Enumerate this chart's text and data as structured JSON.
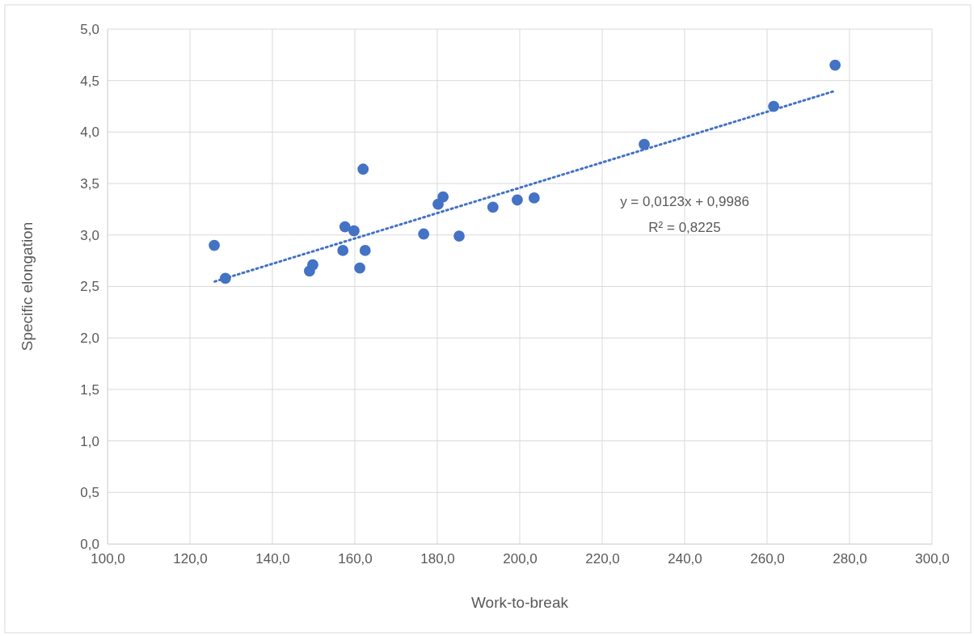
{
  "chart_data": {
    "type": "scatter",
    "xlabel": "Work-to-break",
    "ylabel": "Specific elongation",
    "xlim": [
      100,
      300
    ],
    "xticks": [
      {
        "value": 100,
        "label": "100,0"
      },
      {
        "value": 120,
        "label": "120,0"
      },
      {
        "value": 140,
        "label": "140,0"
      },
      {
        "value": 160,
        "label": "160,0"
      },
      {
        "value": 180,
        "label": "180,0"
      },
      {
        "value": 200,
        "label": "200,0"
      },
      {
        "value": 220,
        "label": "220,0"
      },
      {
        "value": 240,
        "label": "240,0"
      },
      {
        "value": 260,
        "label": "260,0"
      },
      {
        "value": 280,
        "label": "280,0"
      },
      {
        "value": 300,
        "label": "300,0"
      }
    ],
    "ylim": [
      0,
      5
    ],
    "yticks": [
      {
        "value": 0,
        "label": "0,0"
      },
      {
        "value": 0.5,
        "label": "0,5"
      },
      {
        "value": 1,
        "label": "1,0"
      },
      {
        "value": 1.5,
        "label": "1,5"
      },
      {
        "value": 2,
        "label": "2,0"
      },
      {
        "value": 2.5,
        "label": "2,5"
      },
      {
        "value": 3,
        "label": "3,0"
      },
      {
        "value": 3.5,
        "label": "3,5"
      },
      {
        "value": 4,
        "label": "4,0"
      },
      {
        "value": 4.5,
        "label": "4,5"
      },
      {
        "value": 5,
        "label": "5,0"
      }
    ],
    "grid": true,
    "series": [
      {
        "color": "#4472c4",
        "marker": "circle",
        "x": [
          125.9,
          128.6,
          149.0,
          149.8,
          157.1,
          157.6,
          159.8,
          161.2,
          162.0,
          162.5,
          176.7,
          180.2,
          181.4,
          185.3,
          193.5,
          199.4,
          203.5,
          230.2,
          261.6,
          276.5
        ],
        "values": [
          2.9,
          2.58,
          2.65,
          2.71,
          2.85,
          3.08,
          3.04,
          2.68,
          3.64,
          2.85,
          3.01,
          3.3,
          3.37,
          2.99,
          3.27,
          3.34,
          3.36,
          3.88,
          4.25,
          4.65
        ]
      },
      {
        "type": "line",
        "color": "#4472c4",
        "marker": "none",
        "line_style": "dotted",
        "x": [
          126,
          276.5
        ],
        "values": [
          2.548,
          4.4
        ]
      }
    ],
    "annotations": [
      "y = 0,0123x + 0,9986",
      "R² = 0,8225"
    ]
  }
}
